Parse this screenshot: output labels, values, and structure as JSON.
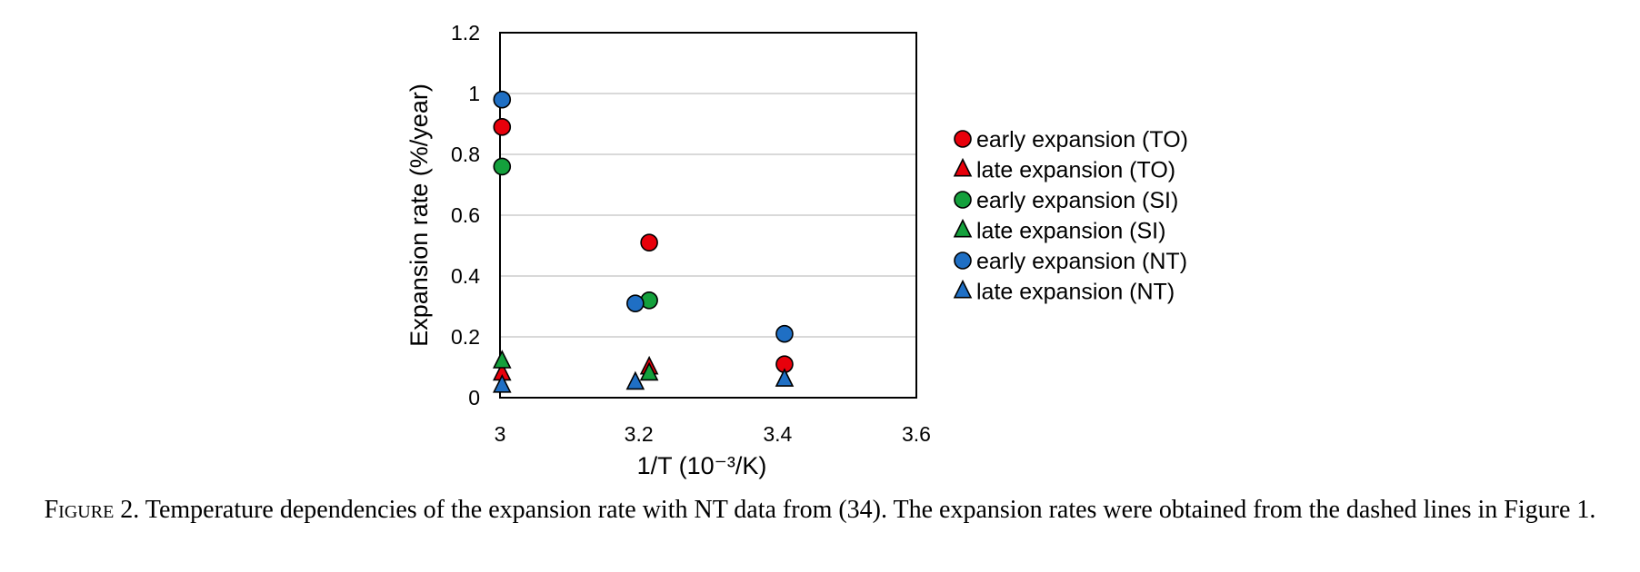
{
  "chart_data": {
    "type": "scatter",
    "xlabel": "1/T (10⁻³/K)",
    "ylabel": "Expansion rate (%/year)",
    "xlim": [
      3.0,
      3.6
    ],
    "ylim": [
      0,
      1.2
    ],
    "xticks": [
      "3",
      "3.2",
      "3.4",
      "3.6"
    ],
    "yticks": [
      "0",
      "0.2",
      "0.4",
      "0.6",
      "0.8",
      "1",
      "1.2"
    ],
    "grid": "horizontal",
    "legend_position": "right",
    "series": [
      {
        "name": "early expansion (TO)",
        "marker": "circle",
        "color": "#e8000b",
        "points": [
          {
            "x": 3.003,
            "y": 0.89
          },
          {
            "x": 3.215,
            "y": 0.51
          },
          {
            "x": 3.41,
            "y": 0.11
          }
        ]
      },
      {
        "name": "late expansion (TO)",
        "marker": "triangle",
        "color": "#e8000b",
        "points": [
          {
            "x": 3.003,
            "y": 0.08
          },
          {
            "x": 3.215,
            "y": 0.1
          }
        ]
      },
      {
        "name": "early expansion (SI)",
        "marker": "circle",
        "color": "#14a03c",
        "points": [
          {
            "x": 3.003,
            "y": 0.76
          },
          {
            "x": 3.215,
            "y": 0.32
          }
        ]
      },
      {
        "name": "late expansion (SI)",
        "marker": "triangle",
        "color": "#14a03c",
        "points": [
          {
            "x": 3.003,
            "y": 0.12
          },
          {
            "x": 3.215,
            "y": 0.08
          }
        ]
      },
      {
        "name": "early expansion (NT)",
        "marker": "circle",
        "color": "#1f6fc4",
        "points": [
          {
            "x": 3.003,
            "y": 0.98
          },
          {
            "x": 3.195,
            "y": 0.31
          },
          {
            "x": 3.41,
            "y": 0.21
          }
        ]
      },
      {
        "name": "late expansion (NT)",
        "marker": "triangle",
        "color": "#1f6fc4",
        "points": [
          {
            "x": 3.003,
            "y": 0.04
          },
          {
            "x": 3.195,
            "y": 0.05
          },
          {
            "x": 3.41,
            "y": 0.06
          }
        ]
      }
    ]
  },
  "caption": {
    "prefix": "Figure",
    "number": "2.",
    "text": "Temperature dependencies of the expansion rate with NT data from (34). The expansion rates were obtained from the dashed lines in Figure 1."
  }
}
